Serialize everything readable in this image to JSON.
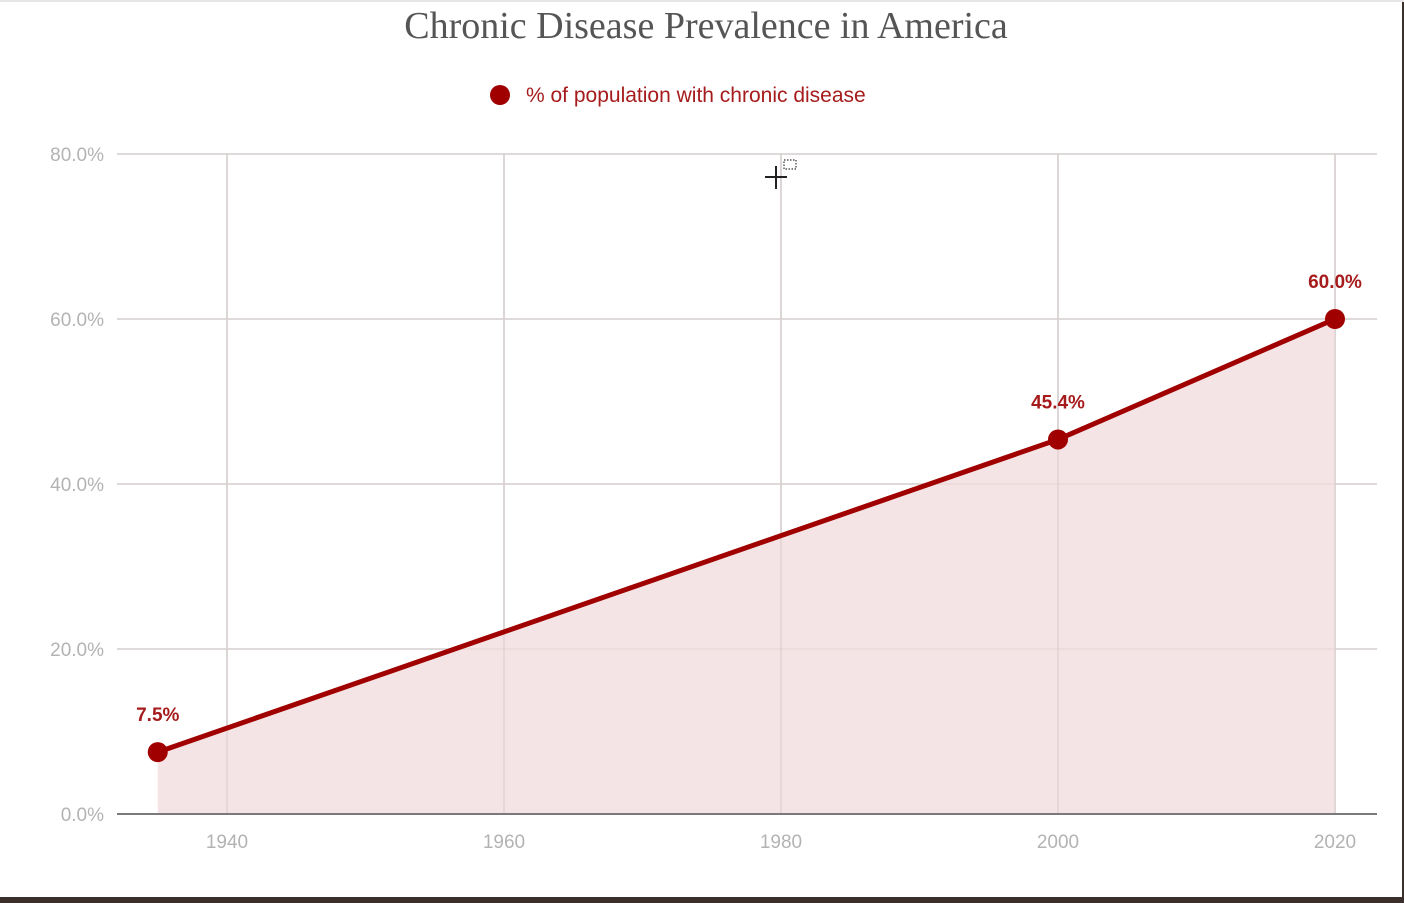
{
  "chart_data": {
    "type": "area",
    "title": "Chronic Disease Prevalence in America",
    "xlabel": "",
    "ylabel": "",
    "x": [
      1935,
      2000,
      2020
    ],
    "series": [
      {
        "name": "% of population with chronic disease",
        "values": [
          7.5,
          45.4,
          60.0
        ],
        "data_labels": [
          "7.5%",
          "45.4%",
          "60.0%"
        ],
        "color": "#a00000",
        "fill_color": "#f4e3e4"
      }
    ],
    "xlim": [
      1931,
      2023
    ],
    "ylim": [
      0,
      80
    ],
    "x_ticks": [
      1940,
      1960,
      1980,
      2000,
      2020
    ],
    "x_tick_labels": [
      "1940",
      "1960",
      "1980",
      "2000",
      "2020"
    ],
    "y_ticks": [
      0,
      20,
      40,
      60,
      80
    ],
    "y_tick_labels": [
      "0.0%",
      "20.0%",
      "40.0%",
      "60.0%",
      "80.0%"
    ],
    "grid": true,
    "legend": "top-center"
  },
  "colors": {
    "accent": "#a00000",
    "fill": "#f4e3e4",
    "grid": "#e0e0e0",
    "axis": "#7a7a7a",
    "tick_text": "#b3b3b3",
    "title_text": "#555555",
    "label_text": "#a61c1c"
  },
  "cursor": {
    "icon": "crosshair-cursor-icon"
  }
}
